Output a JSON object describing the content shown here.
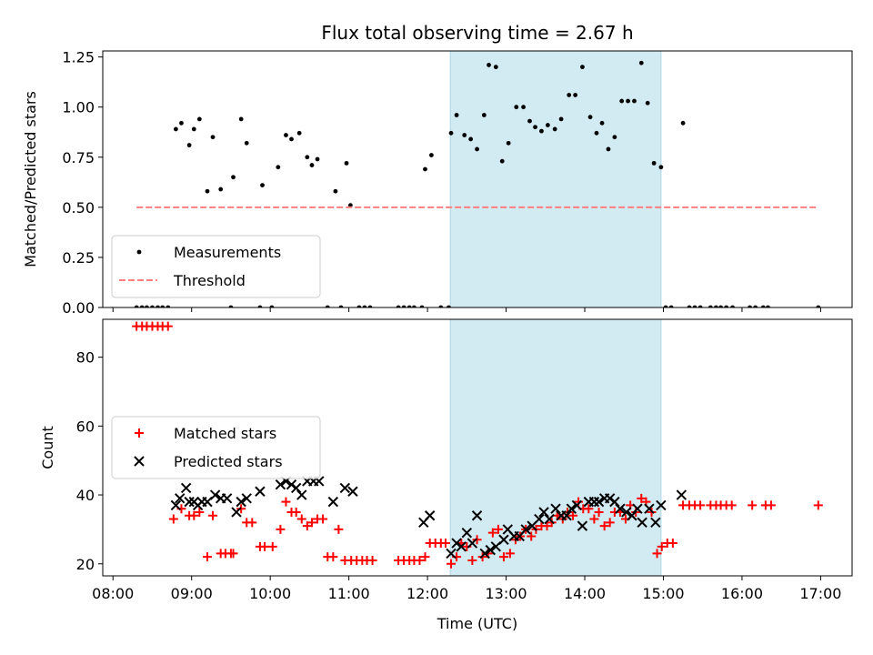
{
  "chart_data": {
    "type": "scatter",
    "title": "Flux total observing time = 2.67 h",
    "xlabel": "Time (UTC)",
    "x_unit": "hours UTC",
    "xlim": [
      7.87,
      17.4
    ],
    "x_ticks": [
      {
        "v": 8,
        "label": "08:00"
      },
      {
        "v": 9,
        "label": "09:00"
      },
      {
        "v": 10,
        "label": "10:00"
      },
      {
        "v": 11,
        "label": "11:00"
      },
      {
        "v": 12,
        "label": "12:00"
      },
      {
        "v": 13,
        "label": "13:00"
      },
      {
        "v": 14,
        "label": "14:00"
      },
      {
        "v": 15,
        "label": "15:00"
      },
      {
        "v": 16,
        "label": "16:00"
      },
      {
        "v": 17,
        "label": "17:00"
      }
    ],
    "highlight_span": {
      "start": 12.29,
      "end": 14.97,
      "color": "#add8e6"
    },
    "panels": [
      {
        "id": "ratio",
        "ylabel": "Matched/Predicted stars",
        "ylim": [
          0,
          1.28
        ],
        "y_ticks": [
          {
            "v": 0,
            "label": "0.00"
          },
          {
            "v": 0.25,
            "label": "0.25"
          },
          {
            "v": 0.5,
            "label": "0.50"
          },
          {
            "v": 0.75,
            "label": "0.75"
          },
          {
            "v": 1.0,
            "label": "1.00"
          },
          {
            "v": 1.25,
            "label": "1.25"
          }
        ],
        "legend_position": "lower-left",
        "series": [
          {
            "name": "Measurements",
            "marker": "dot",
            "color": "#000000",
            "x": [
              8.3,
              8.37,
              8.43,
              8.5,
              8.57,
              8.63,
              8.7,
              8.8,
              8.87,
              8.97,
              9.03,
              9.1,
              9.2,
              9.27,
              9.37,
              9.5,
              9.53,
              9.63,
              9.7,
              9.87,
              9.9,
              10.02,
              10.1,
              10.2,
              10.27,
              10.37,
              10.47,
              10.53,
              10.6,
              10.73,
              10.83,
              10.9,
              10.97,
              11.02,
              11.13,
              11.2,
              11.27,
              11.63,
              11.7,
              11.77,
              11.83,
              11.93,
              11.97,
              12.05,
              12.17,
              12.27,
              12.3,
              12.37,
              12.47,
              12.55,
              12.63,
              12.72,
              12.78,
              12.87,
              12.95,
              13.03,
              13.13,
              13.22,
              13.3,
              13.37,
              13.45,
              13.53,
              13.62,
              13.7,
              13.8,
              13.88,
              13.97,
              14.07,
              14.15,
              14.22,
              14.3,
              14.38,
              14.47,
              14.55,
              14.63,
              14.72,
              14.8,
              14.88,
              14.97,
              15.03,
              15.1,
              15.25,
              15.33,
              15.4,
              15.47,
              15.6,
              15.67,
              15.73,
              15.8,
              15.88,
              16.1,
              16.17,
              16.27,
              16.33,
              16.97
            ],
            "y": [
              0,
              0,
              0,
              0,
              0,
              0,
              0,
              0.89,
              0.92,
              0.81,
              0.89,
              0.94,
              0.58,
              0.85,
              0.59,
              0,
              0.65,
              0.94,
              0.82,
              0,
              0.61,
              0,
              0.7,
              0.86,
              0.84,
              0.87,
              0.75,
              0.71,
              0.74,
              0,
              0.58,
              0,
              0.72,
              0.51,
              0,
              0,
              0,
              0,
              0,
              0,
              0,
              0,
              0.69,
              0.76,
              0,
              0,
              0.87,
              0.96,
              0.86,
              0.84,
              0.79,
              0.96,
              1.21,
              1.2,
              0.73,
              0.82,
              1.0,
              1.0,
              0.93,
              0.9,
              0.88,
              0.91,
              0.89,
              0.94,
              1.06,
              1.06,
              1.2,
              0.95,
              0.87,
              0.92,
              0.79,
              0.85,
              1.03,
              1.03,
              1.03,
              1.22,
              1.02,
              0.72,
              0.7,
              0,
              0,
              0.92,
              0,
              0,
              0,
              0,
              0,
              0,
              0,
              0,
              0,
              0,
              0,
              0,
              0
            ]
          },
          {
            "name": "Threshold",
            "type": "line",
            "style": "dashed",
            "color": "#ff7f7f",
            "x": [
              8.3,
              16.97
            ],
            "y": [
              0.5,
              0.5
            ]
          }
        ]
      },
      {
        "id": "counts",
        "ylabel": "Count",
        "ylim": [
          16.5,
          91
        ],
        "y_ticks": [
          {
            "v": 20,
            "label": "20"
          },
          {
            "v": 40,
            "label": "40"
          },
          {
            "v": 60,
            "label": "60"
          },
          {
            "v": 80,
            "label": "80"
          }
        ],
        "legend_position": "center-left",
        "series": [
          {
            "name": "Matched stars",
            "marker": "plus",
            "color": "#ff0000",
            "x": [
              8.3,
              8.37,
              8.43,
              8.5,
              8.57,
              8.63,
              8.7,
              8.77,
              8.87,
              8.97,
              9.03,
              9.1,
              9.2,
              9.27,
              9.37,
              9.43,
              9.5,
              9.53,
              9.63,
              9.7,
              9.77,
              9.87,
              9.93,
              10.03,
              10.13,
              10.2,
              10.27,
              10.33,
              10.4,
              10.47,
              10.53,
              10.6,
              10.67,
              10.73,
              10.8,
              10.87,
              10.95,
              11.03,
              11.1,
              11.17,
              11.23,
              11.3,
              11.63,
              11.7,
              11.77,
              11.83,
              11.9,
              11.97,
              12.03,
              12.1,
              12.17,
              12.23,
              12.3,
              12.37,
              12.43,
              12.5,
              12.57,
              12.63,
              12.7,
              12.77,
              12.83,
              12.9,
              12.97,
              13.05,
              13.12,
              13.18,
              13.25,
              13.32,
              13.38,
              13.45,
              13.52,
              13.58,
              13.65,
              13.72,
              13.78,
              13.85,
              13.92,
              13.98,
              14.05,
              14.12,
              14.18,
              14.25,
              14.32,
              14.38,
              14.45,
              14.52,
              14.58,
              14.65,
              14.72,
              14.78,
              14.85,
              14.92,
              14.98,
              15.05,
              15.12,
              15.25,
              15.33,
              15.4,
              15.47,
              15.6,
              15.67,
              15.73,
              15.8,
              15.87,
              16.13,
              16.3,
              16.37,
              16.97
            ],
            "y": [
              89,
              89,
              89,
              89,
              89,
              89,
              89,
              33,
              36,
              34,
              34,
              35,
              22,
              34,
              23,
              23,
              23,
              23,
              36,
              32,
              32,
              25,
              25,
              25,
              30,
              38,
              35,
              35,
              33,
              31,
              32,
              33,
              33,
              22,
              22,
              30,
              21,
              21,
              21,
              21,
              21,
              21,
              21,
              21,
              21,
              21,
              21,
              22,
              26,
              26,
              26,
              26,
              20,
              22,
              26,
              25,
              21,
              27,
              22,
              23,
              29,
              30,
              22,
              23,
              27,
              28,
              30,
              28,
              30,
              31,
              31,
              32,
              34,
              33,
              35,
              34,
              38,
              36,
              36,
              33,
              35,
              31,
              32,
              35,
              35,
              33,
              37,
              35,
              39,
              38,
              35,
              23,
              25,
              26,
              26,
              37,
              37,
              37,
              37,
              37,
              37,
              37,
              37,
              37,
              37,
              37,
              37,
              37
            ]
          },
          {
            "name": "Predicted stars",
            "marker": "x",
            "color": "#000000",
            "x": [
              8.8,
              8.85,
              8.93,
              8.97,
              9.03,
              9.08,
              9.13,
              9.2,
              9.3,
              9.37,
              9.45,
              9.57,
              9.63,
              9.7,
              9.87,
              10.13,
              10.2,
              10.27,
              10.33,
              10.4,
              10.47,
              10.55,
              10.62,
              10.8,
              10.95,
              11.05,
              11.95,
              12.03,
              12.3,
              12.37,
              12.43,
              12.5,
              12.57,
              12.63,
              12.73,
              12.8,
              12.87,
              12.97,
              13.02,
              13.1,
              13.17,
              13.25,
              13.33,
              13.42,
              13.48,
              13.55,
              13.63,
              13.7,
              13.77,
              13.83,
              13.9,
              13.97,
              14.05,
              14.12,
              14.18,
              14.25,
              14.32,
              14.38,
              14.45,
              14.53,
              14.6,
              14.67,
              14.73,
              14.82,
              14.9,
              14.97,
              15.23
            ],
            "y": [
              37,
              39,
              42,
              38,
              38,
              37,
              38,
              38,
              40,
              39,
              39,
              35,
              38,
              39,
              41,
              43,
              44,
              43,
              42,
              40,
              44,
              44,
              44,
              38,
              42,
              41,
              32,
              34,
              23,
              26,
              25,
              29,
              26,
              34,
              23,
              24,
              25,
              27,
              30,
              28,
              28,
              30,
              31,
              33,
              35,
              33,
              36,
              34,
              34,
              36,
              37,
              31,
              38,
              38,
              38,
              39,
              39,
              38,
              36,
              35,
              34,
              36,
              32,
              36,
              32,
              37,
              40
            ]
          }
        ]
      }
    ]
  }
}
